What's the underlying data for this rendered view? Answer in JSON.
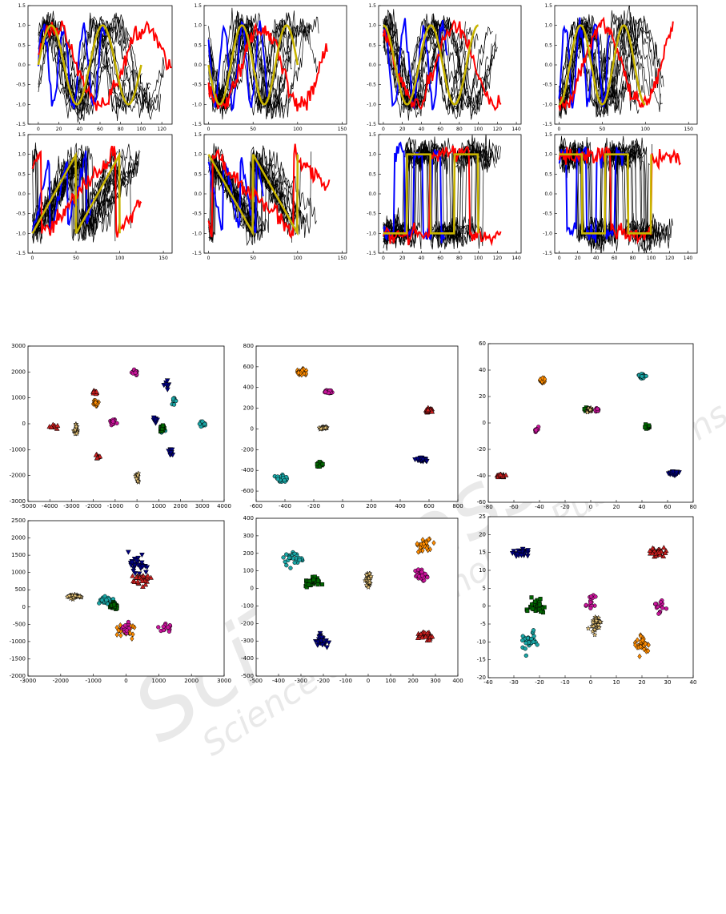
{
  "watermark": {
    "brand": "SciTePress",
    "tagline": "Science and Technology Publications"
  },
  "colors": {
    "time_series": {
      "background": "#000000",
      "blue": "#0000ff",
      "red": "#ff0000",
      "prototype": "#c8b400"
    },
    "clusters": [
      "#00007f",
      "#ff8c00",
      "#1aa5a5",
      "#006400",
      "#c8149a",
      "#c81e1e",
      "#eac77a"
    ]
  },
  "chart_data": [
    {
      "type": "line",
      "panel": "ts-1",
      "prototype": "sine",
      "phase": 0,
      "xlim": [
        -10,
        130
      ],
      "ylim": [
        -1.5,
        1.5
      ],
      "xticks": [
        "0",
        "20",
        "40",
        "60",
        "80",
        "100",
        "120"
      ],
      "yticks": [
        "1.5",
        "1.0",
        "0.5",
        "0.0",
        "-0.5",
        "-1.0",
        "-1.5"
      ],
      "series": [
        {
          "color": "black"
        },
        {
          "color": "blue"
        },
        {
          "color": "red"
        },
        {
          "color": "yellow"
        }
      ]
    },
    {
      "type": "line",
      "panel": "ts-2",
      "prototype": "sine",
      "phase": 3.14159,
      "xlim": [
        -5,
        155
      ],
      "ylim": [
        -1.5,
        1.5
      ],
      "xticks": [
        "0",
        "50",
        "100",
        "150"
      ],
      "yticks": [
        "1.5",
        "1.0",
        "0.5",
        "0.0",
        "-0.5",
        "-1.0",
        "-1.5"
      ],
      "series": [
        {
          "color": "black"
        },
        {
          "color": "blue"
        },
        {
          "color": "red"
        },
        {
          "color": "yellow"
        }
      ]
    },
    {
      "type": "line",
      "panel": "ts-3",
      "prototype": "sine",
      "phase": 1.5708,
      "xlim": [
        -5,
        145
      ],
      "ylim": [
        -1.5,
        1.5
      ],
      "xticks": [
        "0",
        "20",
        "40",
        "60",
        "80",
        "100",
        "120",
        "140"
      ],
      "yticks": [
        "1.5",
        "1.0",
        "0.5",
        "0.0",
        "-0.5",
        "-1.0",
        "-1.5"
      ],
      "series": [
        {
          "color": "black"
        },
        {
          "color": "blue"
        },
        {
          "color": "red"
        },
        {
          "color": "yellow"
        }
      ]
    },
    {
      "type": "line",
      "panel": "ts-4",
      "prototype": "sine",
      "phase": -1.5708,
      "xlim": [
        -5,
        160
      ],
      "ylim": [
        -1.5,
        1.5
      ],
      "xticks": [
        "0",
        "50",
        "100",
        "150"
      ],
      "yticks": [
        "1.5",
        "1.0",
        "0.5",
        "0.0",
        "-0.5",
        "-1.0",
        "-1.5"
      ],
      "series": [
        {
          "color": "black"
        },
        {
          "color": "blue"
        },
        {
          "color": "red"
        },
        {
          "color": "yellow"
        }
      ]
    },
    {
      "type": "line",
      "panel": "ts-5",
      "prototype": "triangle-up",
      "phase": 0,
      "xlim": [
        -5,
        160
      ],
      "ylim": [
        -1.5,
        1.5
      ],
      "xticks": [
        "0",
        "50",
        "100",
        "150"
      ],
      "yticks": [
        "1.5",
        "1.0",
        "0.5",
        "0.0",
        "-0.5",
        "-1.0",
        "-1.5"
      ],
      "series": [
        {
          "color": "black"
        },
        {
          "color": "blue"
        },
        {
          "color": "red"
        },
        {
          "color": "yellow"
        }
      ]
    },
    {
      "type": "line",
      "panel": "ts-6",
      "prototype": "triangle-down",
      "phase": 0,
      "xlim": [
        -5,
        155
      ],
      "ylim": [
        -1.5,
        1.5
      ],
      "xticks": [
        "0",
        "50",
        "100",
        "150"
      ],
      "yticks": [
        "1.5",
        "1.0",
        "0.5",
        "0.0",
        "-0.5",
        "-1.0",
        "-1.5"
      ],
      "series": [
        {
          "color": "black"
        },
        {
          "color": "blue"
        },
        {
          "color": "red"
        },
        {
          "color": "yellow"
        }
      ]
    },
    {
      "type": "line",
      "panel": "ts-7",
      "prototype": "square-low",
      "phase": 0,
      "xlim": [
        -5,
        145
      ],
      "ylim": [
        -1.5,
        1.5
      ],
      "xticks": [
        "0",
        "20",
        "40",
        "60",
        "80",
        "100",
        "120",
        "140"
      ],
      "yticks": [
        "1.5",
        "1.0",
        "0.5",
        "0.0",
        "-0.5",
        "-1.0",
        "-1.5"
      ],
      "series": [
        {
          "color": "black"
        },
        {
          "color": "blue"
        },
        {
          "color": "red"
        },
        {
          "color": "yellow"
        }
      ]
    },
    {
      "type": "line",
      "panel": "ts-8",
      "prototype": "square-high",
      "phase": 0,
      "xlim": [
        -5,
        150
      ],
      "ylim": [
        -1.5,
        1.5
      ],
      "xticks": [
        "0",
        "20",
        "40",
        "60",
        "80",
        "100",
        "120",
        "140"
      ],
      "yticks": [
        "1.5",
        "1.0",
        "0.5",
        "0.0",
        "-0.5",
        "-1.0",
        "-1.5"
      ],
      "series": [
        {
          "color": "black"
        },
        {
          "color": "blue"
        },
        {
          "color": "red"
        },
        {
          "color": "yellow"
        }
      ]
    },
    {
      "type": "scatter",
      "panel": "sc-1",
      "xlim": [
        -5000,
        4000
      ],
      "ylim": [
        -3000,
        3000
      ],
      "xticks": [
        "-5000",
        "-4000",
        "-3000",
        "-2000",
        "-1000",
        "0",
        "1000",
        "2000",
        "3000",
        "4000"
      ],
      "yticks": [
        "3000",
        "2000",
        "1000",
        "0",
        "-1000",
        "-2000",
        "-3000"
      ],
      "clusters": [
        {
          "marker": "triangle-down",
          "color": 0,
          "centers": [
            [
              1350,
              1500
            ],
            [
              850,
              150
            ],
            [
              1550,
              -1100
            ]
          ],
          "spread": [
            160,
            200
          ]
        },
        {
          "marker": "diamond",
          "color": 1,
          "centers": [
            [
              -1900,
              800
            ]
          ],
          "spread": [
            120,
            120
          ]
        },
        {
          "marker": "circle",
          "color": 2,
          "centers": [
            [
              1700,
              900
            ],
            [
              3000,
              0
            ],
            [
              1200,
              -200
            ]
          ],
          "spread": [
            150,
            150
          ]
        },
        {
          "marker": "square",
          "color": 3,
          "centers": [
            [
              1150,
              -150
            ]
          ],
          "spread": [
            130,
            160
          ]
        },
        {
          "marker": "circle",
          "color": 4,
          "centers": [
            [
              -1100,
              50
            ],
            [
              -100,
              2000
            ]
          ],
          "spread": [
            160,
            150
          ]
        },
        {
          "marker": "triangle",
          "color": 5,
          "centers": [
            [
              -3800,
              -100
            ],
            [
              -1900,
              1200
            ],
            [
              -1800,
              -1300
            ]
          ],
          "spread": [
            200,
            140
          ]
        },
        {
          "marker": "star",
          "color": 6,
          "centers": [
            [
              0,
              -2100
            ],
            [
              -2800,
              -250
            ]
          ],
          "spread": [
            120,
            200
          ]
        }
      ]
    },
    {
      "type": "scatter",
      "panel": "sc-2",
      "xlim": [
        -600,
        800
      ],
      "ylim": [
        -700,
        800
      ],
      "xticks": [
        "-600",
        "-400",
        "-200",
        "0",
        "200",
        "400",
        "600",
        "800"
      ],
      "yticks": [
        "800",
        "600",
        "400",
        "200",
        "0",
        "-200",
        "-400",
        "-600"
      ],
      "clusters": [
        {
          "marker": "triangle-down",
          "color": 0,
          "centers": [
            [
              550,
              -300
            ]
          ],
          "spread": [
            40,
            20
          ]
        },
        {
          "marker": "diamond",
          "color": 1,
          "centers": [
            [
              -280,
              540
            ]
          ],
          "spread": [
            50,
            40
          ]
        },
        {
          "marker": "circle",
          "color": 2,
          "centers": [
            [
              -420,
              -480
            ]
          ],
          "spread": [
            60,
            40
          ]
        },
        {
          "marker": "square",
          "color": 3,
          "centers": [
            [
              -160,
              -340
            ]
          ],
          "spread": [
            30,
            30
          ]
        },
        {
          "marker": "circle",
          "color": 4,
          "centers": [
            [
              -100,
              360
            ]
          ],
          "spread": [
            40,
            20
          ]
        },
        {
          "marker": "triangle",
          "color": 5,
          "centers": [
            [
              600,
              180
            ]
          ],
          "spread": [
            30,
            25
          ]
        },
        {
          "marker": "star",
          "color": 6,
          "centers": [
            [
              -130,
              10
            ]
          ],
          "spread": [
            40,
            15
          ]
        }
      ]
    },
    {
      "type": "scatter",
      "panel": "sc-3",
      "xlim": [
        -80,
        80
      ],
      "ylim": [
        -60,
        60
      ],
      "xticks": [
        "-80",
        "-60",
        "-40",
        "-20",
        "0",
        "20",
        "40",
        "60",
        "80"
      ],
      "yticks": [
        "60",
        "40",
        "20",
        "0",
        "-20",
        "-40",
        "-60"
      ],
      "clusters": [
        {
          "marker": "triangle-down",
          "color": 0,
          "centers": [
            [
              65,
              -38
            ]
          ],
          "spread": [
            4,
            2
          ]
        },
        {
          "marker": "diamond",
          "color": 1,
          "centers": [
            [
              -38,
              32
            ]
          ],
          "spread": [
            3,
            2
          ]
        },
        {
          "marker": "circle",
          "color": 2,
          "centers": [
            [
              40,
              35
            ]
          ],
          "spread": [
            3,
            2.5
          ]
        },
        {
          "marker": "square",
          "color": 3,
          "centers": [
            [
              45,
              -3
            ],
            [
              -3,
              10
            ]
          ],
          "spread": [
            3,
            2
          ]
        },
        {
          "marker": "circle",
          "color": 4,
          "centers": [
            [
              5,
              10
            ],
            [
              -42,
              -5
            ]
          ],
          "spread": [
            2,
            2
          ]
        },
        {
          "marker": "triangle",
          "color": 5,
          "centers": [
            [
              -70,
              -40
            ]
          ],
          "spread": [
            4,
            1.5
          ]
        },
        {
          "marker": "star",
          "color": 6,
          "centers": [
            [
              -1,
              10
            ]
          ],
          "spread": [
            2,
            2
          ]
        }
      ]
    },
    {
      "type": "scatter",
      "panel": "sc-4",
      "xlim": [
        -3000,
        3000
      ],
      "ylim": [
        -2000,
        2500
      ],
      "xticks": [
        "-3000",
        "-2000",
        "-1000",
        "0",
        "1000",
        "2000",
        "3000"
      ],
      "yticks": [
        "2500",
        "2000",
        "1500",
        "1000",
        "500",
        "0",
        "-500",
        "-1000",
        "-1500",
        "-2000"
      ],
      "clusters": [
        {
          "marker": "triangle-down",
          "color": 0,
          "centers": [
            [
              300,
              1200
            ]
          ],
          "spread": [
            450,
            300
          ]
        },
        {
          "marker": "diamond",
          "color": 1,
          "centers": [
            [
              0,
              -700
            ]
          ],
          "spread": [
            400,
            250
          ]
        },
        {
          "marker": "circle",
          "color": 2,
          "centers": [
            [
              -600,
              200
            ]
          ],
          "spread": [
            300,
            120
          ]
        },
        {
          "marker": "square",
          "color": 3,
          "centers": [
            [
              -400,
              50
            ]
          ],
          "spread": [
            150,
            130
          ]
        },
        {
          "marker": "circle",
          "color": 4,
          "centers": [
            [
              1200,
              -600
            ],
            [
              0,
              -600
            ]
          ],
          "spread": [
            250,
            200
          ]
        },
        {
          "marker": "triangle",
          "color": 5,
          "centers": [
            [
              500,
              800
            ]
          ],
          "spread": [
            400,
            200
          ]
        },
        {
          "marker": "star",
          "color": 6,
          "centers": [
            [
              -1600,
              300
            ]
          ],
          "spread": [
            250,
            80
          ]
        }
      ]
    },
    {
      "type": "scatter",
      "panel": "sc-5",
      "xlim": [
        -500,
        400
      ],
      "ylim": [
        -500,
        400
      ],
      "xticks": [
        "-500",
        "-400",
        "-300",
        "-200",
        "-100",
        "0",
        "100",
        "200",
        "300",
        "400"
      ],
      "yticks": [
        "400",
        "300",
        "200",
        "100",
        "0",
        "-100",
        "-200",
        "-300",
        "-400",
        "-500"
      ],
      "clusters": [
        {
          "marker": "triangle-down",
          "color": 0,
          "centers": [
            [
              -210,
              -300
            ]
          ],
          "spread": [
            30,
            50
          ]
        },
        {
          "marker": "diamond",
          "color": 1,
          "centers": [
            [
              250,
              240
            ]
          ],
          "spread": [
            50,
            40
          ]
        },
        {
          "marker": "circle",
          "color": 2,
          "centers": [
            [
              -330,
              170
            ]
          ],
          "spread": [
            60,
            50
          ]
        },
        {
          "marker": "square",
          "color": 3,
          "centers": [
            [
              -250,
              40
            ]
          ],
          "spread": [
            50,
            40
          ]
        },
        {
          "marker": "circle",
          "color": 4,
          "centers": [
            [
              240,
              80
            ]
          ],
          "spread": [
            40,
            40
          ]
        },
        {
          "marker": "triangle",
          "color": 5,
          "centers": [
            [
              250,
              -270
            ]
          ],
          "spread": [
            40,
            30
          ]
        },
        {
          "marker": "star",
          "color": 6,
          "centers": [
            [
              0,
              50
            ]
          ],
          "spread": [
            15,
            50
          ]
        }
      ]
    },
    {
      "type": "scatter",
      "panel": "sc-6",
      "xlim": [
        -40,
        40
      ],
      "ylim": [
        -20,
        25
      ],
      "xticks": [
        "-40",
        "-30",
        "-20",
        "-10",
        "0",
        "10",
        "20",
        "30",
        "40"
      ],
      "yticks": [
        "25",
        "20",
        "15",
        "10",
        "5",
        "0",
        "-5",
        "-10",
        "-15",
        "-20"
      ],
      "clusters": [
        {
          "marker": "triangle-down",
          "color": 0,
          "centers": [
            [
              -27,
              15
            ]
          ],
          "spread": [
            4,
            1.5
          ]
        },
        {
          "marker": "diamond",
          "color": 1,
          "centers": [
            [
              20,
              -11
            ]
          ],
          "spread": [
            4,
            3
          ]
        },
        {
          "marker": "circle",
          "color": 2,
          "centers": [
            [
              -24,
              -10
            ]
          ],
          "spread": [
            4,
            3
          ]
        },
        {
          "marker": "square",
          "color": 3,
          "centers": [
            [
              -21,
              0
            ]
          ],
          "spread": [
            4,
            3
          ]
        },
        {
          "marker": "circle",
          "color": 4,
          "centers": [
            [
              27,
              0
            ],
            [
              0,
              1
            ]
          ],
          "spread": [
            3,
            3
          ]
        },
        {
          "marker": "triangle",
          "color": 5,
          "centers": [
            [
              26,
              15
            ]
          ],
          "spread": [
            4,
            1.5
          ]
        },
        {
          "marker": "star",
          "color": 6,
          "centers": [
            [
              2,
              -5
            ]
          ],
          "spread": [
            3,
            3
          ]
        }
      ]
    }
  ]
}
